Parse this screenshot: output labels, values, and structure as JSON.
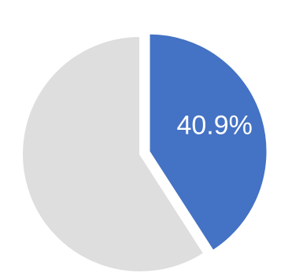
{
  "chart_data": {
    "type": "pie",
    "slices": [
      {
        "value": 40.9,
        "color": "#4472C4",
        "exploded": true
      },
      {
        "value": 59.1,
        "color": "#DEDEDE",
        "exploded": false
      }
    ],
    "data_labels": [
      "40.9%",
      ""
    ],
    "start_angle_deg": 0,
    "direction": "clockwise",
    "grid": false,
    "legend": "none"
  }
}
